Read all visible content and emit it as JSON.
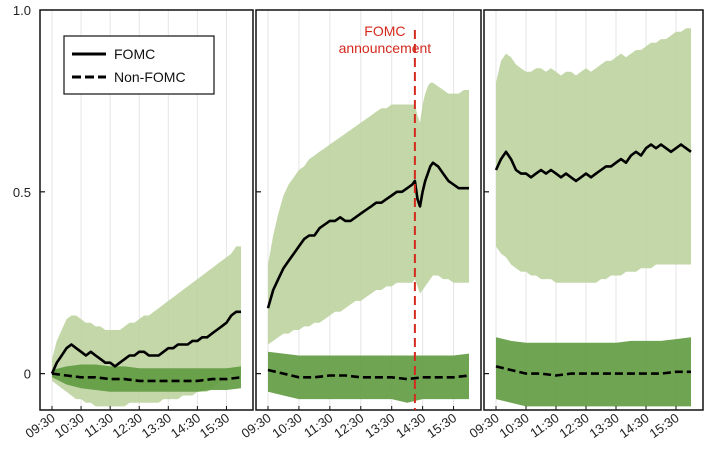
{
  "chart_data": {
    "type": "area",
    "title": "",
    "xlabel": "",
    "ylabel": "",
    "ylim": [
      -0.1,
      1.0
    ],
    "y_ticks": [
      "0",
      "0.5",
      "1.0"
    ],
    "y_tick_values": [
      0,
      0.5,
      1.0
    ],
    "x_ticks": [
      "09:30",
      "10:30",
      "11:30",
      "12:30",
      "13:30",
      "14:30",
      "15:30"
    ],
    "x_tick_values": [
      0,
      60,
      120,
      180,
      240,
      300,
      360
    ],
    "xlim": [
      0,
      390
    ],
    "grid": true,
    "legend": {
      "position": "top-left",
      "entries": [
        {
          "label": "FOMC",
          "style": "solid"
        },
        {
          "label": "Non-FOMC",
          "style": "dashed"
        }
      ]
    },
    "colors": {
      "fomc_band": "#b8d09a",
      "nonfomc_band": "#5f9a3f",
      "line": "#000000",
      "announcement": "#d42a1e"
    },
    "annotation": {
      "panel": 1,
      "x": 285,
      "label_line1": "FOMC",
      "label_line2": "announcement"
    },
    "panels": [
      {
        "fomc": {
          "x": [
            0,
            10,
            20,
            30,
            40,
            50,
            60,
            70,
            80,
            90,
            100,
            110,
            120,
            130,
            140,
            150,
            160,
            170,
            180,
            190,
            200,
            210,
            220,
            230,
            240,
            250,
            260,
            270,
            280,
            290,
            300,
            310,
            320,
            330,
            340,
            350,
            360,
            370,
            380,
            390
          ],
          "y": [
            0.0,
            0.03,
            0.05,
            0.07,
            0.08,
            0.07,
            0.06,
            0.05,
            0.06,
            0.05,
            0.04,
            0.03,
            0.03,
            0.02,
            0.03,
            0.04,
            0.05,
            0.05,
            0.06,
            0.06,
            0.05,
            0.05,
            0.05,
            0.06,
            0.07,
            0.07,
            0.08,
            0.08,
            0.08,
            0.09,
            0.09,
            0.1,
            0.1,
            0.11,
            0.12,
            0.13,
            0.14,
            0.16,
            0.17,
            0.17
          ],
          "lower": [
            -0.02,
            -0.03,
            -0.04,
            -0.05,
            -0.06,
            -0.07,
            -0.07,
            -0.08,
            -0.08,
            -0.09,
            -0.09,
            -0.09,
            -0.09,
            -0.09,
            -0.09,
            -0.09,
            -0.08,
            -0.08,
            -0.08,
            -0.08,
            -0.08,
            -0.08,
            -0.08,
            -0.07,
            -0.07,
            -0.07,
            -0.07,
            -0.06,
            -0.06,
            -0.06,
            -0.05,
            -0.05,
            -0.05,
            -0.04,
            -0.03,
            -0.02,
            -0.01,
            0.0,
            -0.01,
            -0.01
          ],
          "upper": [
            0.04,
            0.09,
            0.12,
            0.15,
            0.16,
            0.16,
            0.15,
            0.14,
            0.14,
            0.13,
            0.13,
            0.12,
            0.12,
            0.12,
            0.12,
            0.13,
            0.14,
            0.14,
            0.15,
            0.16,
            0.16,
            0.17,
            0.18,
            0.19,
            0.2,
            0.21,
            0.22,
            0.23,
            0.24,
            0.25,
            0.26,
            0.27,
            0.28,
            0.29,
            0.3,
            0.31,
            0.32,
            0.33,
            0.35,
            0.35
          ]
        },
        "nonfomc": {
          "x": [
            0,
            30,
            60,
            90,
            120,
            150,
            180,
            210,
            240,
            270,
            300,
            330,
            360,
            390
          ],
          "y": [
            0.0,
            -0.005,
            -0.01,
            -0.01,
            -0.015,
            -0.015,
            -0.02,
            -0.02,
            -0.02,
            -0.02,
            -0.02,
            -0.015,
            -0.015,
            -0.01
          ],
          "lower": [
            -0.01,
            -0.03,
            -0.04,
            -0.045,
            -0.05,
            -0.05,
            -0.05,
            -0.05,
            -0.05,
            -0.05,
            -0.05,
            -0.045,
            -0.045,
            -0.04
          ],
          "upper": [
            0.01,
            0.02,
            0.025,
            0.025,
            0.02,
            0.02,
            0.015,
            0.015,
            0.015,
            0.015,
            0.015,
            0.015,
            0.015,
            0.02
          ]
        }
      },
      {
        "fomc": {
          "x": [
            0,
            10,
            20,
            30,
            40,
            50,
            60,
            70,
            80,
            90,
            100,
            110,
            120,
            130,
            140,
            150,
            160,
            170,
            180,
            190,
            200,
            210,
            220,
            230,
            240,
            250,
            260,
            270,
            280,
            285,
            290,
            295,
            300,
            305,
            310,
            315,
            320,
            330,
            340,
            350,
            360,
            370,
            380,
            390
          ],
          "y": [
            0.18,
            0.23,
            0.26,
            0.29,
            0.31,
            0.33,
            0.35,
            0.37,
            0.38,
            0.38,
            0.4,
            0.41,
            0.42,
            0.42,
            0.43,
            0.42,
            0.42,
            0.43,
            0.44,
            0.45,
            0.46,
            0.47,
            0.47,
            0.48,
            0.49,
            0.5,
            0.5,
            0.51,
            0.52,
            0.53,
            0.48,
            0.46,
            0.5,
            0.53,
            0.55,
            0.57,
            0.58,
            0.57,
            0.55,
            0.53,
            0.52,
            0.51,
            0.51,
            0.51
          ],
          "lower": [
            0.08,
            0.09,
            0.1,
            0.11,
            0.11,
            0.12,
            0.12,
            0.13,
            0.13,
            0.14,
            0.14,
            0.15,
            0.16,
            0.17,
            0.17,
            0.18,
            0.19,
            0.2,
            0.2,
            0.21,
            0.22,
            0.23,
            0.23,
            0.24,
            0.24,
            0.25,
            0.25,
            0.25,
            0.25,
            0.26,
            0.24,
            0.22,
            0.23,
            0.24,
            0.25,
            0.26,
            0.27,
            0.27,
            0.26,
            0.26,
            0.25,
            0.25,
            0.25,
            0.25
          ],
          "upper": [
            0.3,
            0.38,
            0.44,
            0.49,
            0.52,
            0.54,
            0.56,
            0.57,
            0.59,
            0.6,
            0.61,
            0.62,
            0.63,
            0.64,
            0.65,
            0.66,
            0.67,
            0.68,
            0.69,
            0.7,
            0.71,
            0.72,
            0.73,
            0.73,
            0.74,
            0.74,
            0.74,
            0.74,
            0.74,
            0.74,
            0.71,
            0.69,
            0.74,
            0.77,
            0.79,
            0.8,
            0.8,
            0.79,
            0.78,
            0.77,
            0.77,
            0.77,
            0.78,
            0.78
          ]
        },
        "nonfomc": {
          "x": [
            0,
            30,
            60,
            90,
            120,
            150,
            180,
            210,
            240,
            270,
            300,
            330,
            360,
            390
          ],
          "y": [
            0.01,
            0.0,
            -0.01,
            -0.01,
            -0.005,
            -0.005,
            -0.01,
            -0.01,
            -0.01,
            -0.015,
            -0.01,
            -0.01,
            -0.01,
            -0.005
          ],
          "lower": [
            -0.05,
            -0.06,
            -0.07,
            -0.07,
            -0.07,
            -0.07,
            -0.07,
            -0.07,
            -0.07,
            -0.08,
            -0.07,
            -0.07,
            -0.07,
            -0.07
          ],
          "upper": [
            0.06,
            0.055,
            0.05,
            0.05,
            0.05,
            0.05,
            0.05,
            0.05,
            0.05,
            0.05,
            0.05,
            0.05,
            0.05,
            0.055
          ]
        }
      },
      {
        "fomc": {
          "x": [
            0,
            10,
            20,
            30,
            40,
            50,
            60,
            70,
            80,
            90,
            100,
            110,
            120,
            130,
            140,
            150,
            160,
            170,
            180,
            190,
            200,
            210,
            220,
            230,
            240,
            250,
            260,
            270,
            280,
            290,
            300,
            310,
            320,
            330,
            340,
            350,
            360,
            370,
            380,
            390
          ],
          "y": [
            0.56,
            0.59,
            0.61,
            0.59,
            0.56,
            0.55,
            0.55,
            0.54,
            0.55,
            0.56,
            0.55,
            0.56,
            0.55,
            0.54,
            0.55,
            0.54,
            0.53,
            0.54,
            0.55,
            0.54,
            0.55,
            0.56,
            0.57,
            0.57,
            0.58,
            0.59,
            0.58,
            0.6,
            0.61,
            0.6,
            0.62,
            0.63,
            0.62,
            0.63,
            0.62,
            0.61,
            0.62,
            0.63,
            0.62,
            0.61
          ],
          "lower": [
            0.35,
            0.33,
            0.32,
            0.3,
            0.29,
            0.28,
            0.28,
            0.27,
            0.27,
            0.26,
            0.26,
            0.26,
            0.25,
            0.25,
            0.25,
            0.25,
            0.25,
            0.25,
            0.25,
            0.25,
            0.25,
            0.26,
            0.26,
            0.27,
            0.27,
            0.27,
            0.28,
            0.28,
            0.28,
            0.29,
            0.29,
            0.29,
            0.3,
            0.3,
            0.3,
            0.3,
            0.3,
            0.3,
            0.3,
            0.3
          ],
          "upper": [
            0.8,
            0.86,
            0.88,
            0.87,
            0.85,
            0.84,
            0.83,
            0.83,
            0.84,
            0.84,
            0.83,
            0.84,
            0.83,
            0.82,
            0.83,
            0.83,
            0.82,
            0.83,
            0.84,
            0.83,
            0.84,
            0.85,
            0.86,
            0.86,
            0.87,
            0.88,
            0.87,
            0.88,
            0.89,
            0.89,
            0.9,
            0.91,
            0.91,
            0.92,
            0.92,
            0.93,
            0.94,
            0.94,
            0.95,
            0.95
          ]
        },
        "nonfomc": {
          "x": [
            0,
            30,
            60,
            90,
            120,
            150,
            180,
            210,
            240,
            270,
            300,
            330,
            360,
            390
          ],
          "y": [
            0.02,
            0.01,
            0.0,
            0.0,
            -0.005,
            0.0,
            0.0,
            0.0,
            0.0,
            0.0,
            0.0,
            0.0,
            0.005,
            0.005
          ],
          "lower": [
            -0.07,
            -0.08,
            -0.09,
            -0.09,
            -0.09,
            -0.09,
            -0.09,
            -0.09,
            -0.09,
            -0.09,
            -0.09,
            -0.09,
            -0.09,
            -0.09
          ],
          "upper": [
            0.1,
            0.09,
            0.085,
            0.085,
            0.085,
            0.085,
            0.085,
            0.085,
            0.085,
            0.09,
            0.09,
            0.09,
            0.095,
            0.1
          ]
        }
      }
    ]
  }
}
